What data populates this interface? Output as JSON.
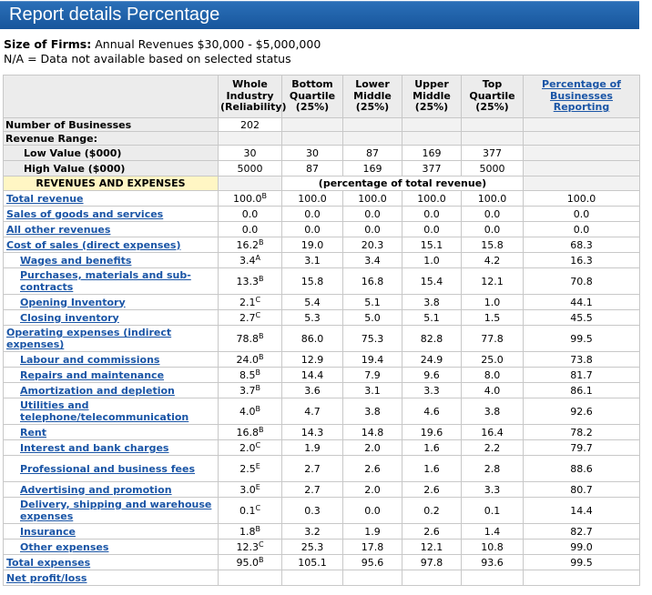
{
  "title": "Report details Percentage",
  "size_label": "Size of Firms:",
  "size_value": "Annual Revenues $30,000 - $5,000,000",
  "na_note": "N/A = Data not available based on selected status",
  "headers": [
    "Whole Industry (Reliability)",
    "Bottom Quartile (25%)",
    "Lower Middle (25%)",
    "Upper Middle (25%)",
    "Top Quartile (25%)",
    "Percentage of Businesses Reporting"
  ],
  "num_businesses": {
    "label": "Number of Businesses",
    "value": "202"
  },
  "revenue_range": {
    "label": "Revenue Range:",
    "low": {
      "label": "Low Value ($000)",
      "values": [
        "30",
        "30",
        "87",
        "169",
        "377"
      ]
    },
    "high": {
      "label": "High Value ($000)",
      "values": [
        "5000",
        "87",
        "169",
        "377",
        "5000"
      ]
    }
  },
  "rev_exp_label": "REVENUES AND EXPENSES",
  "pct_note": "(percentage of total revenue)",
  "rows": [
    {
      "label": "Total revenue",
      "indent": 1,
      "whole": "100.0",
      "rel": "B",
      "q": [
        "100.0",
        "100.0",
        "100.0",
        "100.0"
      ],
      "pct": "100.0"
    },
    {
      "label": "Sales of goods and services",
      "indent": 1,
      "whole": "0.0",
      "rel": "",
      "q": [
        "0.0",
        "0.0",
        "0.0",
        "0.0"
      ],
      "pct": "0.0"
    },
    {
      "label": "All other revenues",
      "indent": 1,
      "whole": "0.0",
      "rel": "",
      "q": [
        "0.0",
        "0.0",
        "0.0",
        "0.0"
      ],
      "pct": "0.0"
    },
    {
      "label": "Cost of sales (direct expenses)",
      "indent": 1,
      "whole": "16.2",
      "rel": "B",
      "q": [
        "19.0",
        "20.3",
        "15.1",
        "15.8"
      ],
      "pct": "68.3"
    },
    {
      "label": "Wages and benefits",
      "indent": 2,
      "whole": "3.4",
      "rel": "A",
      "q": [
        "3.1",
        "3.4",
        "1.0",
        "4.2"
      ],
      "pct": "16.3"
    },
    {
      "label": "Purchases, materials and sub-contracts",
      "indent": 2,
      "whole": "13.3",
      "rel": "B",
      "q": [
        "15.8",
        "16.8",
        "15.4",
        "12.1"
      ],
      "pct": "70.8"
    },
    {
      "label": "Opening Inventory",
      "indent": 2,
      "whole": "2.1",
      "rel": "C",
      "q": [
        "5.4",
        "5.1",
        "3.8",
        "1.0"
      ],
      "pct": "44.1"
    },
    {
      "label": "Closing inventory",
      "indent": 2,
      "whole": "2.7",
      "rel": "C",
      "q": [
        "5.3",
        "5.0",
        "5.1",
        "1.5"
      ],
      "pct": "45.5"
    },
    {
      "label": "Operating expenses (indirect expenses)",
      "indent": 1,
      "whole": "78.8",
      "rel": "B",
      "q": [
        "86.0",
        "75.3",
        "82.8",
        "77.8"
      ],
      "pct": "99.5"
    },
    {
      "label": "Labour and commissions",
      "indent": 2,
      "whole": "24.0",
      "rel": "B",
      "q": [
        "12.9",
        "19.4",
        "24.9",
        "25.0"
      ],
      "pct": "73.8"
    },
    {
      "label": "Repairs and maintenance",
      "indent": 2,
      "whole": "8.5",
      "rel": "B",
      "q": [
        "14.4",
        "7.9",
        "9.6",
        "8.0"
      ],
      "pct": "81.7"
    },
    {
      "label": "Amortization and depletion",
      "indent": 2,
      "whole": "3.7",
      "rel": "B",
      "q": [
        "3.6",
        "3.1",
        "3.3",
        "4.0"
      ],
      "pct": "86.1"
    },
    {
      "label": "Utilities and telephone/telecommunication",
      "indent": 2,
      "whole": "4.0",
      "rel": "B",
      "q": [
        "4.7",
        "3.8",
        "4.6",
        "3.8"
      ],
      "pct": "92.6"
    },
    {
      "label": "Rent",
      "indent": 2,
      "whole": "16.8",
      "rel": "B",
      "q": [
        "14.3",
        "14.8",
        "19.6",
        "16.4"
      ],
      "pct": "78.2"
    },
    {
      "label": "Interest and bank charges",
      "indent": 2,
      "whole": "2.0",
      "rel": "C",
      "q": [
        "1.9",
        "2.0",
        "1.6",
        "2.2"
      ],
      "pct": "79.7"
    },
    {
      "label": "Professional and business fees",
      "indent": 2,
      "whole": "2.5",
      "rel": "E",
      "q": [
        "2.7",
        "2.6",
        "1.6",
        "2.8"
      ],
      "pct": "88.6"
    },
    {
      "label": "Advertising and promotion",
      "indent": 2,
      "whole": "3.0",
      "rel": "E",
      "q": [
        "2.7",
        "2.0",
        "2.6",
        "3.3"
      ],
      "pct": "80.7"
    },
    {
      "label": "Delivery, shipping and warehouse expenses",
      "indent": 2,
      "whole": "0.1",
      "rel": "C",
      "q": [
        "0.3",
        "0.0",
        "0.2",
        "0.1"
      ],
      "pct": "14.4"
    },
    {
      "label": "Insurance",
      "indent": 2,
      "whole": "1.8",
      "rel": "B",
      "q": [
        "3.2",
        "1.9",
        "2.6",
        "1.4"
      ],
      "pct": "82.7"
    },
    {
      "label": "Other expenses",
      "indent": 2,
      "whole": "12.3",
      "rel": "C",
      "q": [
        "25.3",
        "17.8",
        "12.1",
        "10.8"
      ],
      "pct": "99.0"
    },
    {
      "label": "Total expenses",
      "indent": 1,
      "whole": "95.0",
      "rel": "B",
      "q": [
        "105.1",
        "95.6",
        "97.8",
        "93.6"
      ],
      "pct": "99.5"
    },
    {
      "label": "Net profit/loss",
      "indent": 1,
      "whole": "",
      "rel": "",
      "q": [
        "",
        "",
        "",
        ""
      ],
      "pct": ""
    }
  ]
}
